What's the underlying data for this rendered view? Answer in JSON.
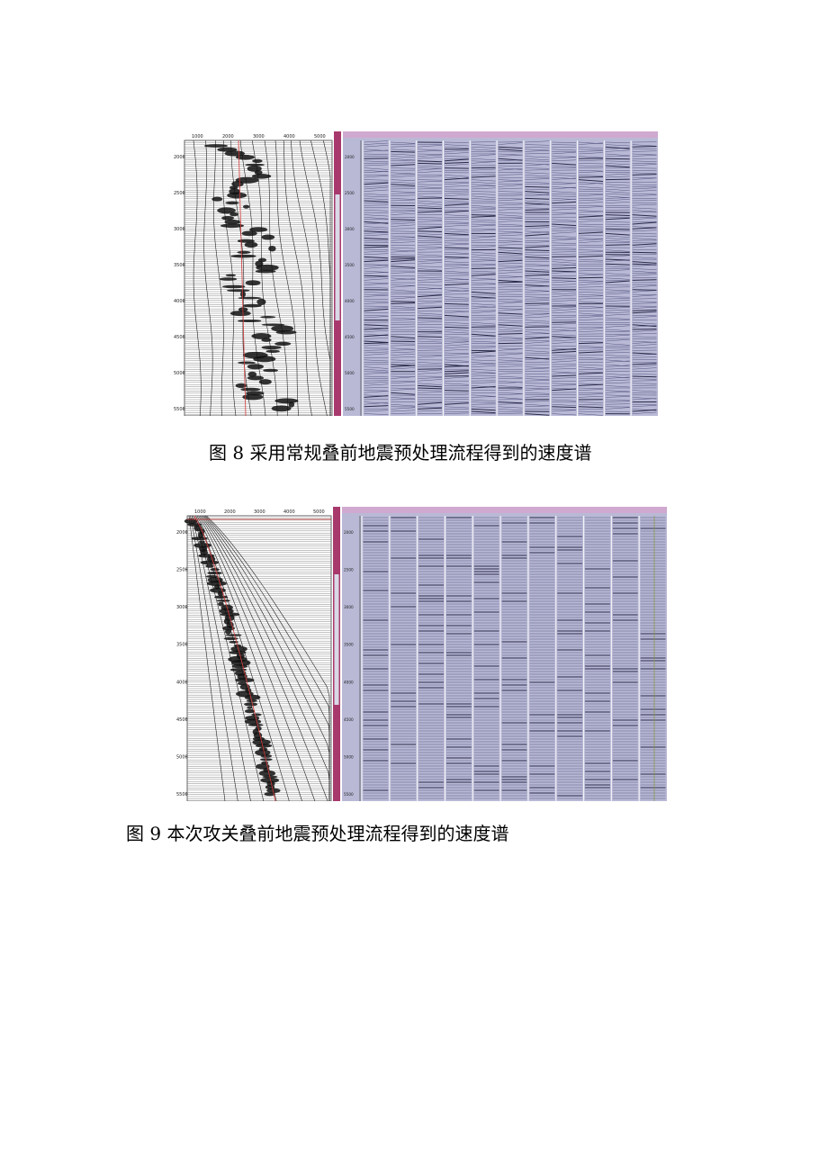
{
  "figures": [
    {
      "id": "fig8",
      "caption": "图 8 采用常规叠前地震预处理流程得到的速度谱",
      "velocity_ticks": [
        "1000",
        "2000",
        "3000",
        "4000",
        "5000"
      ],
      "time_ticks": [
        "2000",
        "2500",
        "3000",
        "3500",
        "4000",
        "4500",
        "5000",
        "5500"
      ],
      "gather_time_ticks": [
        "2000",
        "2500",
        "3000",
        "3500",
        "4000",
        "4500",
        "5000",
        "5500"
      ],
      "gather_count": 11,
      "colors": {
        "panel_bg": "#b9b9d6",
        "trace": "#3a3a6a",
        "scrollbar": "#a8396c",
        "guide": "#d43a3a"
      }
    },
    {
      "id": "fig9",
      "caption": "图 9 本次攻关叠前地震预处理流程得到的速度谱",
      "velocity_ticks": [
        "1000",
        "2000",
        "3000",
        "4000",
        "5000"
      ],
      "time_ticks": [
        "2000",
        "2500",
        "3000",
        "3500",
        "4000",
        "4500",
        "5000",
        "5500"
      ],
      "gather_time_ticks": [
        "2000",
        "2500",
        "3000",
        "3500",
        "4000",
        "4500",
        "5000",
        "5500"
      ],
      "gather_count": 11,
      "colors": {
        "panel_bg": "#b9b9d6",
        "trace": "#3a3a6a",
        "scrollbar": "#a8396c",
        "guide": "#d43a3a"
      }
    }
  ]
}
